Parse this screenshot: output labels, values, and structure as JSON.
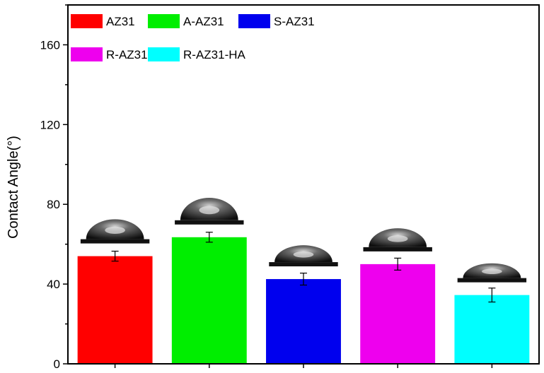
{
  "chart_data": {
    "type": "bar",
    "categories": [
      "AZ31",
      "A-AZ31",
      "S-AZ31",
      "R-AZ31",
      "R-AZ31-HA"
    ],
    "values": [
      54,
      63.5,
      42.5,
      50,
      34.5
    ],
    "errors": [
      2.5,
      2.5,
      3,
      3,
      3.5
    ],
    "colors": [
      "#ff0000",
      "#00ee00",
      "#0000ee",
      "#ee00ee",
      "#00ffff"
    ],
    "ylabel": "Contact Angle(°)",
    "ylim": [
      0,
      180
    ],
    "yticks": [
      0,
      40,
      80,
      120,
      160
    ],
    "legend": {
      "position": "top-left",
      "entries": [
        "AZ31",
        "A-AZ31",
        "S-AZ31",
        "R-AZ31",
        "R-AZ31-HA"
      ]
    },
    "grid": false,
    "annotations": "droplet-image above each bar"
  }
}
